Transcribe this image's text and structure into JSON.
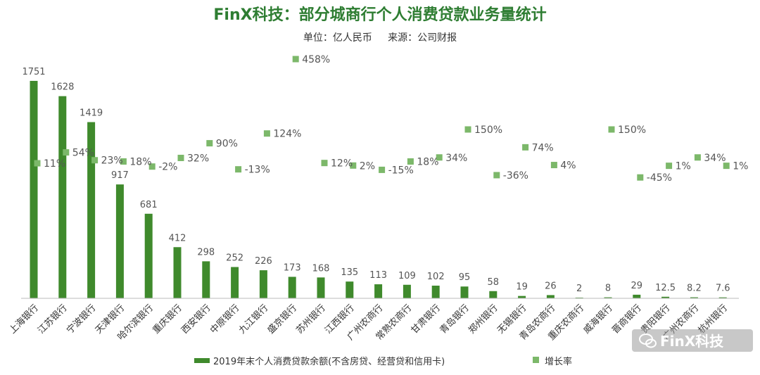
{
  "watermark": "FinX科技",
  "chart_data": {
    "type": "bar",
    "title": "FinX科技：部分城商行个人消费贷款业务量统计",
    "subtitle": "单位：亿人民币     来源：公司财报",
    "categories": [
      "上海银行",
      "江苏银行",
      "宁波银行",
      "天津银行",
      "哈尔滨银行",
      "重庆银行",
      "西安银行",
      "中原银行",
      "九江银行",
      "盛京银行",
      "苏州银行",
      "江西银行",
      "广州农商行",
      "常熟农商行",
      "甘肃银行",
      "青岛银行",
      "郑州银行",
      "无锡银行",
      "青岛农商行",
      "重庆农商行",
      "威海银行",
      "晋商银行",
      "贵阳银行",
      "广州农商行",
      "杭州银行"
    ],
    "series": [
      {
        "name": "2019年末个人消费贷款余额(不含房贷、经营贷和信用卡)",
        "type": "bar",
        "color": "#3f8a2c",
        "values": [
          1751,
          1628,
          1419,
          917,
          681,
          412,
          298,
          252,
          226,
          173,
          168,
          135,
          113,
          109,
          102,
          95,
          58,
          19,
          26,
          2,
          8,
          29,
          12.5,
          8.2,
          7.6
        ],
        "labels": [
          "1751",
          "1628",
          "1419",
          "917",
          "681",
          "412",
          "298",
          "252",
          "226",
          "173",
          "168",
          "135",
          "113",
          "109",
          "102",
          "95",
          "58",
          "19",
          "26",
          "2",
          "8",
          "29",
          "12.5",
          "8.2",
          "7.6"
        ]
      },
      {
        "name": "增长率",
        "type": "scatter",
        "color": "#7cb86a",
        "values": [
          11,
          54,
          23,
          18,
          -2,
          32,
          90,
          -13,
          124,
          458,
          12,
          2,
          -15,
          18,
          34,
          150,
          -36,
          74,
          4,
          null,
          150,
          -45,
          1,
          34,
          1
        ],
        "labels": [
          "11%",
          "54%",
          "23%",
          "18%",
          "-2%",
          "32%",
          "90%",
          "-13%",
          "124%",
          "458%",
          "12%",
          "2%",
          "-15%",
          "18%",
          "34%",
          "150%",
          "-36%",
          "74%",
          "4%",
          "",
          "150%",
          "-45%",
          "1%",
          "34%",
          "1%"
        ]
      }
    ],
    "legend_position": "bottom",
    "grid": false
  }
}
